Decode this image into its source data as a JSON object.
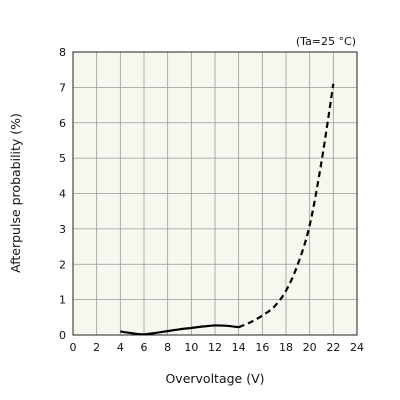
{
  "chart_data": {
    "type": "line",
    "title": "",
    "xlabel": "Overvoltage (V)",
    "ylabel": "Afterpulse probability (%)",
    "xlim": [
      0,
      24
    ],
    "ylim": [
      0,
      8
    ],
    "xticks": [
      0,
      2,
      4,
      6,
      8,
      10,
      12,
      14,
      16,
      18,
      20,
      22,
      24
    ],
    "yticks": [
      0,
      1,
      2,
      3,
      4,
      5,
      6,
      7,
      8
    ],
    "grid": true,
    "legend": "none",
    "annotation": "(Ta=25 °C)",
    "plot_background": "#f7f6ef",
    "line_color": "#000000",
    "series": [
      {
        "style": "solid",
        "x": [
          4,
          5,
          6,
          7,
          8,
          9,
          10,
          11,
          12,
          13,
          14
        ],
        "y": [
          0.1,
          0.05,
          0.02,
          0.06,
          0.11,
          0.16,
          0.2,
          0.24,
          0.27,
          0.26,
          0.22
        ]
      },
      {
        "style": "dashed",
        "x": [
          14,
          15,
          16,
          17,
          18,
          19,
          20,
          21,
          22
        ],
        "y": [
          0.22,
          0.36,
          0.55,
          0.8,
          1.25,
          2.0,
          3.1,
          4.9,
          7.1
        ]
      }
    ]
  }
}
